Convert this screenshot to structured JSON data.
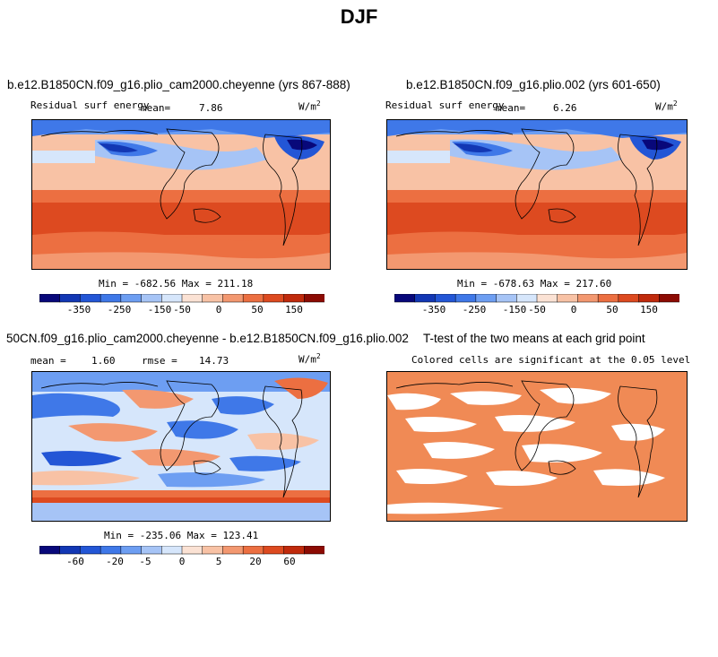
{
  "figure": {
    "title": "DJF"
  },
  "panels": [
    {
      "id": "p1",
      "title": "b.e12.B1850CN.f09_g16.plio_cam2000.cheyenne (yrs 867-888)",
      "variable": "Residual surf energy",
      "mean_label": "mean=",
      "mean_value": "7.86",
      "units_base": "W/m",
      "units_exp": "2",
      "minmax": "Min = -682.56 Max = 211.18",
      "colorbar": {
        "colors": [
          "#08087a",
          "#1237b4",
          "#2356d6",
          "#3f78e8",
          "#6d9ef2",
          "#a6c4f6",
          "#d6e6fb",
          "#fbe2d4",
          "#f8c2a5",
          "#f39870",
          "#ec6f41",
          "#dd4a20",
          "#c02a0c",
          "#8c0b03"
        ],
        "labels": [
          "-350",
          "-250",
          "-150",
          "-50",
          "0",
          "50",
          "150"
        ]
      }
    },
    {
      "id": "p2",
      "title": "b.e12.B1850CN.f09_g16.plio.002 (yrs 601-650)",
      "variable": "Residual surf energy",
      "mean_label": "mean=",
      "mean_value": "6.26",
      "units_base": "W/m",
      "units_exp": "2",
      "minmax": "Min = -678.63 Max = 217.60",
      "colorbar": {
        "colors": [
          "#08087a",
          "#1237b4",
          "#2356d6",
          "#3f78e8",
          "#6d9ef2",
          "#a6c4f6",
          "#d6e6fb",
          "#fbe2d4",
          "#f8c2a5",
          "#f39870",
          "#ec6f41",
          "#dd4a20",
          "#c02a0c",
          "#8c0b03"
        ],
        "labels": [
          "-350",
          "-250",
          "-150",
          "-50",
          "0",
          "50",
          "150"
        ]
      }
    },
    {
      "id": "p3",
      "title": "50CN.f09_g16.plio_cam2000.cheyenne - b.e12.B1850CN.f09_g16.plio.002",
      "mean_label": "mean =",
      "mean_value": "1.60",
      "rmse_label": "rmse =",
      "rmse_value": "14.73",
      "units_base": "W/m",
      "units_exp": "2",
      "minmax": "Min = -235.06 Max = 123.41",
      "colorbar": {
        "colors": [
          "#08087a",
          "#1237b4",
          "#2356d6",
          "#3f78e8",
          "#6d9ef2",
          "#a6c4f6",
          "#d6e6fb",
          "#fbe2d4",
          "#f8c2a5",
          "#f39870",
          "#ec6f41",
          "#dd4a20",
          "#c02a0c",
          "#8c0b03"
        ],
        "labels": [
          "-60",
          "-20",
          "-5",
          "0",
          "5",
          "20",
          "60"
        ]
      }
    },
    {
      "id": "p4",
      "title": "T-test of the two means at each grid point",
      "subtitle": "Colored cells are significant at the 0.05 level",
      "significant_color": "#f08a55"
    }
  ],
  "chart_data": [
    {
      "type": "heatmap",
      "title": "b.e12.B1850CN.f09_g16.plio_cam2000.cheyenne (yrs 867-888)",
      "variable": "Residual surf energy",
      "units": "W/m2",
      "mean": 7.86,
      "min": -682.56,
      "max": 211.18,
      "colorbar_labels": [
        -350,
        -250,
        -150,
        -50,
        0,
        50,
        150
      ]
    },
    {
      "type": "heatmap",
      "title": "b.e12.B1850CN.f09_g16.plio.002 (yrs 601-650)",
      "variable": "Residual surf energy",
      "units": "W/m2",
      "mean": 6.26,
      "min": -678.63,
      "max": 217.6,
      "colorbar_labels": [
        -350,
        -250,
        -150,
        -50,
        0,
        50,
        150
      ]
    },
    {
      "type": "heatmap",
      "title": "50CN.f09_g16.plio_cam2000.cheyenne - b.e12.B1850CN.f09_g16.plio.002",
      "units": "W/m2",
      "mean": 1.6,
      "rmse": 14.73,
      "min": -235.06,
      "max": 123.41,
      "colorbar_labels": [
        -60,
        -20,
        -5,
        0,
        5,
        20,
        60
      ]
    },
    {
      "type": "heatmap",
      "title": "T-test of the two means at each grid point",
      "subtitle": "Colored cells are significant at the 0.05 level"
    }
  ]
}
